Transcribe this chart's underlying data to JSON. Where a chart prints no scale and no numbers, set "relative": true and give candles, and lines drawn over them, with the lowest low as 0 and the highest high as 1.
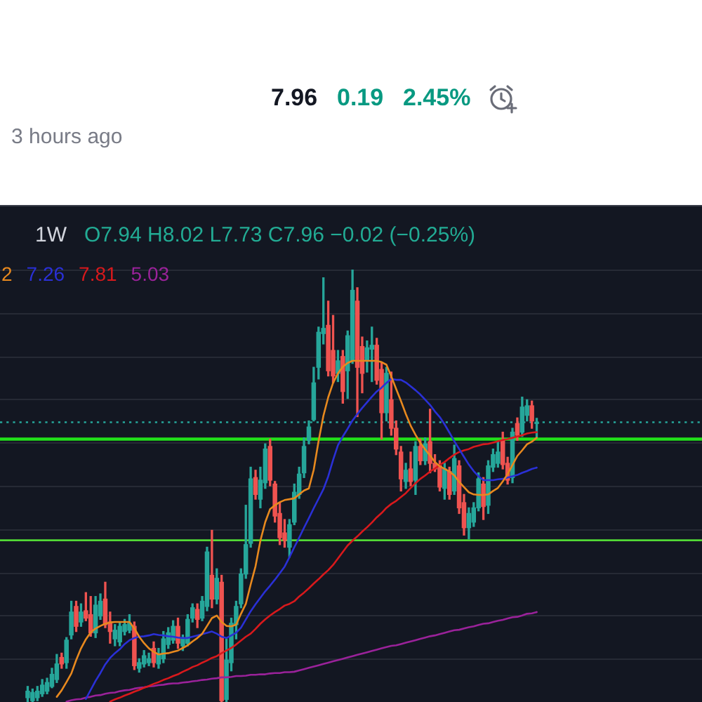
{
  "chart_data": {
    "type": "candlestick",
    "subtitle": "1W",
    "relative": true,
    "annotations": [
      "7.96",
      "0.19",
      "2.45%",
      "3 hours ago",
      "O7.94 H8.02 L7.73 C7.96 −0.02 (−0.25%)"
    ],
    "categories": [
      null,
      null,
      null,
      null,
      null,
      null,
      null,
      null,
      null,
      null,
      null,
      null,
      null,
      null,
      null,
      null,
      null,
      null,
      null,
      null,
      null,
      null,
      null,
      null,
      null,
      null,
      null,
      null,
      null,
      null,
      null,
      null,
      null,
      null,
      null,
      null,
      null,
      null,
      null,
      null,
      null,
      null,
      null,
      null,
      null,
      null,
      null,
      null,
      null,
      null,
      null,
      null,
      null,
      null,
      null,
      null,
      null,
      null,
      null,
      null,
      null,
      null,
      null,
      null,
      null,
      null,
      null,
      null,
      null,
      null,
      null,
      null,
      null,
      null,
      null,
      null,
      null,
      null,
      null,
      null,
      null,
      null,
      null,
      null,
      null,
      null,
      null,
      null,
      null,
      null,
      null,
      null,
      null,
      null,
      null,
      null,
      null,
      null,
      null,
      null,
      null,
      null,
      null,
      null,
      null,
      null
    ],
    "ohlc": [
      [
        0.01,
        0.036,
        0.0,
        0.025
      ],
      [
        0.003,
        0.03,
        0.0,
        0.022
      ],
      [
        0.01,
        0.036,
        0.003,
        0.025
      ],
      [
        0.019,
        0.052,
        0.013,
        0.039
      ],
      [
        0.025,
        0.055,
        0.019,
        0.045
      ],
      [
        0.036,
        0.078,
        0.033,
        0.064
      ],
      [
        0.052,
        0.11,
        0.045,
        0.088
      ],
      [
        0.103,
        0.113,
        0.078,
        0.088
      ],
      [
        0.091,
        0.149,
        0.078,
        0.143
      ],
      [
        0.155,
        0.233,
        0.146,
        0.208
      ],
      [
        0.221,
        0.233,
        0.163,
        0.175
      ],
      [
        0.185,
        0.227,
        0.175,
        0.208
      ],
      [
        0.211,
        0.253,
        0.188,
        0.194
      ],
      [
        0.202,
        0.244,
        0.152,
        0.16
      ],
      [
        0.16,
        0.244,
        0.149,
        0.224
      ],
      [
        0.199,
        0.25,
        0.191,
        0.233
      ],
      [
        0.238,
        0.277,
        0.172,
        0.179
      ],
      [
        0.185,
        0.208,
        0.136,
        0.163
      ],
      [
        0.146,
        0.179,
        0.13,
        0.166
      ],
      [
        0.139,
        0.185,
        0.13,
        0.175
      ],
      [
        0.163,
        0.191,
        0.155,
        0.179
      ],
      [
        0.166,
        0.202,
        0.16,
        0.182
      ],
      [
        0.175,
        0.185,
        0.075,
        0.084
      ],
      [
        0.078,
        0.1,
        0.069,
        0.091
      ],
      [
        0.088,
        0.119,
        0.081,
        0.107
      ],
      [
        0.091,
        0.113,
        0.084,
        0.1
      ],
      [
        0.124,
        0.139,
        0.081,
        0.091
      ],
      [
        0.088,
        0.124,
        0.078,
        0.11
      ],
      [
        0.1,
        0.163,
        0.091,
        0.146
      ],
      [
        0.133,
        0.172,
        0.124,
        0.16
      ],
      [
        0.143,
        0.188,
        0.136,
        0.175
      ],
      [
        0.175,
        0.194,
        0.124,
        0.136
      ],
      [
        0.13,
        0.155,
        0.119,
        0.146
      ],
      [
        0.136,
        0.202,
        0.13,
        0.191
      ],
      [
        0.194,
        0.227,
        0.185,
        0.218
      ],
      [
        0.214,
        0.227,
        0.172,
        0.191
      ],
      [
        0.194,
        0.244,
        0.188,
        0.233
      ],
      [
        0.221,
        0.358,
        0.211,
        0.347
      ],
      [
        0.293,
        0.397,
        0.218,
        0.238
      ],
      [
        0.238,
        0.308,
        0.227,
        0.286
      ],
      [
        0.277,
        0.293,
        0.0,
        0.003
      ],
      [
        0.006,
        0.146,
        0.0,
        0.097
      ],
      [
        0.091,
        0.194,
        0.072,
        0.182
      ],
      [
        0.179,
        0.233,
        0.146,
        0.221
      ],
      [
        0.227,
        0.308,
        0.218,
        0.296
      ],
      [
        0.296,
        0.455,
        0.286,
        0.364
      ],
      [
        0.367,
        0.543,
        0.358,
        0.516
      ],
      [
        0.519,
        0.536,
        0.469,
        0.48
      ],
      [
        0.469,
        0.543,
        0.449,
        0.513
      ],
      [
        0.507,
        0.597,
        0.494,
        0.585
      ],
      [
        0.591,
        0.608,
        0.5,
        0.513
      ],
      [
        0.504,
        0.51,
        0.416,
        0.43
      ],
      [
        0.436,
        0.461,
        0.364,
        0.38
      ],
      [
        0.391,
        0.422,
        0.358,
        0.374
      ],
      [
        0.358,
        0.422,
        0.335,
        0.41
      ],
      [
        0.416,
        0.504,
        0.41,
        0.485
      ],
      [
        0.48,
        0.543,
        0.471,
        0.527
      ],
      [
        0.53,
        0.611,
        0.519,
        0.591
      ],
      [
        0.605,
        0.65,
        0.597,
        0.636
      ],
      [
        0.653,
        0.774,
        0.65,
        0.738
      ],
      [
        0.774,
        0.867,
        0.747,
        0.855
      ],
      [
        0.852,
        0.981,
        0.828,
        0.864
      ],
      [
        0.871,
        0.927,
        0.754,
        0.766
      ],
      [
        0.813,
        0.894,
        0.738,
        0.754
      ],
      [
        0.76,
        0.813,
        0.741,
        0.789
      ],
      [
        0.799,
        0.813,
        0.691,
        0.718
      ],
      [
        0.766,
        0.858,
        0.702,
        0.847
      ],
      [
        0.789,
        1.0,
        0.783,
        0.952
      ],
      [
        0.927,
        0.958,
        0.66,
        0.774
      ],
      [
        0.822,
        0.844,
        0.715,
        0.76
      ],
      [
        0.789,
        0.835,
        0.763,
        0.819
      ],
      [
        0.816,
        0.867,
        0.741,
        0.825
      ],
      [
        0.825,
        0.841,
        0.735,
        0.744
      ],
      [
        0.769,
        0.786,
        0.608,
        0.669
      ],
      [
        0.669,
        0.774,
        0.65,
        0.76
      ],
      [
        0.699,
        0.763,
        0.617,
        0.633
      ],
      [
        0.633,
        0.65,
        0.572,
        0.585
      ],
      [
        0.578,
        0.591,
        0.488,
        0.516
      ],
      [
        0.51,
        0.552,
        0.494,
        0.536
      ],
      [
        0.539,
        0.578,
        0.5,
        0.51
      ],
      [
        0.513,
        0.602,
        0.48,
        0.591
      ],
      [
        0.591,
        0.608,
        0.549,
        0.558
      ],
      [
        0.558,
        0.611,
        0.549,
        0.597
      ],
      [
        0.602,
        0.677,
        0.53,
        0.552
      ],
      [
        0.552,
        0.572,
        0.533,
        0.539
      ],
      [
        0.546,
        0.558,
        0.488,
        0.497
      ],
      [
        0.494,
        0.552,
        0.469,
        0.539
      ],
      [
        0.533,
        0.543,
        0.469,
        0.48
      ],
      [
        0.488,
        0.594,
        0.48,
        0.563
      ],
      [
        0.546,
        0.558,
        0.436,
        0.449
      ],
      [
        0.461,
        0.48,
        0.386,
        0.403
      ],
      [
        0.403,
        0.449,
        0.377,
        0.436
      ],
      [
        0.416,
        0.461,
        0.406,
        0.449
      ],
      [
        0.449,
        0.53,
        0.442,
        0.516
      ],
      [
        0.504,
        0.519,
        0.422,
        0.452
      ],
      [
        0.455,
        0.558,
        0.436,
        0.546
      ],
      [
        0.543,
        0.585,
        0.533,
        0.572
      ],
      [
        0.552,
        0.602,
        0.543,
        0.578
      ],
      [
        0.605,
        0.624,
        0.539,
        0.549
      ],
      [
        0.552,
        0.566,
        0.504,
        0.513
      ],
      [
        0.519,
        0.633,
        0.507,
        0.624
      ],
      [
        0.644,
        0.657,
        0.605,
        0.617
      ],
      [
        0.624,
        0.705,
        0.614,
        0.682
      ],
      [
        0.663,
        0.699,
        0.65,
        0.685
      ],
      [
        0.685,
        0.696,
        0.633,
        0.65
      ],
      [
        0.644,
        0.656,
        0.612,
        0.647
      ]
    ],
    "colors": [
      "#26a69a",
      "#26a69a",
      "#26a69a",
      "#26a69a",
      "#26a69a",
      "#26a69a",
      "#26a69a",
      "#ef5350",
      "#26a69a",
      "#26a69a",
      "#ef5350",
      "#26a69a",
      "#ef5350",
      "#ef5350",
      "#26a69a",
      "#26a69a",
      "#ef5350",
      "#ef5350",
      "#26a69a",
      "#26a69a",
      "#26a69a",
      "#26a69a",
      "#ef5350",
      "#26a69a",
      "#26a69a",
      "#26a69a",
      "#ef5350",
      "#26a69a",
      "#26a69a",
      "#26a69a",
      "#26a69a",
      "#ef5350",
      "#26a69a",
      "#26a69a",
      "#26a69a",
      "#ef5350",
      "#26a69a",
      "#26a69a",
      "#ef5350",
      "#26a69a",
      "#ef5350",
      "#26a69a",
      "#26a69a",
      "#26a69a",
      "#26a69a",
      "#26a69a",
      "#26a69a",
      "#ef5350",
      "#26a69a",
      "#26a69a",
      "#ef5350",
      "#ef5350",
      "#ef5350",
      "#ef5350",
      "#26a69a",
      "#26a69a",
      "#26a69a",
      "#26a69a",
      "#26a69a",
      "#26a69a",
      "#26a69a",
      "#26a69a",
      "#ef5350",
      "#ef5350",
      "#26a69a",
      "#ef5350",
      "#26a69a",
      "#26a69a",
      "#ef5350",
      "#ef5350",
      "#26a69a",
      "#26a69a",
      "#ef5350",
      "#ef5350",
      "#26a69a",
      "#ef5350",
      "#ef5350",
      "#ef5350",
      "#26a69a",
      "#ef5350",
      "#26a69a",
      "#ef5350",
      "#26a69a",
      "#ef5350",
      "#ef5350",
      "#ef5350",
      "#26a69a",
      "#ef5350",
      "#26a69a",
      "#ef5350",
      "#ef5350",
      "#26a69a",
      "#26a69a",
      "#26a69a",
      "#ef5350",
      "#26a69a",
      "#26a69a",
      "#26a69a",
      "#ef5350",
      "#ef5350",
      "#26a69a",
      "#ef5350",
      "#26a69a",
      "#26a69a",
      "#ef5350",
      "#26a69a"
    ],
    "series": [
      {
        "type": "line",
        "name": "2",
        "color": "#e8891e",
        "values": [
          null,
          null,
          null,
          null,
          null,
          null,
          0.012,
          0.027,
          0.046,
          0.066,
          0.097,
          0.124,
          0.145,
          0.161,
          0.17,
          0.176,
          0.181,
          0.184,
          0.185,
          0.185,
          0.185,
          0.185,
          0.17,
          0.151,
          0.136,
          0.124,
          0.116,
          0.11,
          0.112,
          0.113,
          0.116,
          0.119,
          0.125,
          0.131,
          0.14,
          0.148,
          0.158,
          0.176,
          0.194,
          0.2,
          0.185,
          0.176,
          0.175,
          0.179,
          0.204,
          0.227,
          0.272,
          0.314,
          0.373,
          0.416,
          0.446,
          0.455,
          0.462,
          0.467,
          0.469,
          0.471,
          0.48,
          0.489,
          0.494,
          0.537,
          0.603,
          0.662,
          0.705,
          0.738,
          0.76,
          0.775,
          0.784,
          0.789,
          0.789,
          0.789,
          0.789,
          0.789,
          0.789,
          0.786,
          0.78,
          0.753,
          0.724,
          0.696,
          0.666,
          0.639,
          0.618,
          0.599,
          0.584,
          0.57,
          0.555,
          0.545,
          0.539,
          0.533,
          0.524,
          0.509,
          0.497,
          0.485,
          0.48,
          0.479,
          0.479,
          0.48,
          0.488,
          0.495,
          0.51,
          0.527,
          0.548,
          0.569,
          0.582,
          0.596,
          0.602,
          0.611
        ]
      },
      {
        "type": "line",
        "name": "7.26",
        "color": "#2a30d6",
        "values": [
          null,
          null,
          null,
          null,
          null,
          null,
          null,
          null,
          null,
          null,
          null,
          null,
          0.007,
          0.028,
          0.049,
          0.067,
          0.087,
          0.102,
          0.113,
          0.122,
          0.134,
          0.143,
          0.148,
          0.151,
          0.152,
          0.154,
          0.157,
          0.155,
          0.154,
          0.152,
          0.151,
          0.149,
          0.148,
          0.148,
          0.151,
          0.154,
          0.157,
          0.16,
          0.163,
          0.158,
          0.151,
          0.148,
          0.154,
          0.16,
          0.172,
          0.191,
          0.21,
          0.226,
          0.241,
          0.256,
          0.269,
          0.283,
          0.298,
          0.313,
          0.335,
          0.358,
          0.38,
          0.403,
          0.425,
          0.448,
          0.47,
          0.492,
          0.522,
          0.56,
          0.594,
          0.614,
          0.632,
          0.651,
          0.666,
          0.68,
          0.693,
          0.706,
          0.718,
          0.727,
          0.738,
          0.747,
          0.745,
          0.745,
          0.739,
          0.73,
          0.721,
          0.711,
          0.699,
          0.687,
          0.672,
          0.659,
          0.642,
          0.623,
          0.603,
          0.585,
          0.567,
          0.549,
          0.534,
          0.522,
          0.513,
          0.513,
          0.513,
          0.515,
          0.516,
          0.519,
          0.522,
          0.525,
          0.53,
          0.534,
          0.539,
          0.542
        ]
      },
      {
        "type": "line",
        "name": "7.81",
        "color": "#d8191c",
        "values": [
          null,
          null,
          null,
          null,
          null,
          null,
          null,
          null,
          null,
          null,
          null,
          null,
          null,
          null,
          null,
          null,
          null,
          0.001,
          0.006,
          0.01,
          0.015,
          0.019,
          0.024,
          0.028,
          0.033,
          0.037,
          0.042,
          0.046,
          0.051,
          0.055,
          0.06,
          0.064,
          0.07,
          0.075,
          0.081,
          0.085,
          0.091,
          0.096,
          0.102,
          0.106,
          0.113,
          0.119,
          0.125,
          0.133,
          0.142,
          0.151,
          0.158,
          0.169,
          0.181,
          0.191,
          0.2,
          0.208,
          0.215,
          0.223,
          0.227,
          0.233,
          0.244,
          0.253,
          0.263,
          0.274,
          0.284,
          0.295,
          0.305,
          0.317,
          0.332,
          0.347,
          0.362,
          0.373,
          0.383,
          0.394,
          0.404,
          0.415,
          0.427,
          0.437,
          0.449,
          0.458,
          0.465,
          0.474,
          0.483,
          0.495,
          0.506,
          0.516,
          0.524,
          0.533,
          0.54,
          0.548,
          0.555,
          0.564,
          0.572,
          0.578,
          0.582,
          0.585,
          0.59,
          0.593,
          0.596,
          0.597,
          0.6,
          0.603,
          0.606,
          0.608,
          0.611,
          0.614,
          0.617,
          0.621,
          0.623,
          0.624
        ]
      },
      {
        "type": "line",
        "name": "5.03",
        "color": "#9a229a",
        "values": [
          null,
          null,
          null,
          null,
          null,
          null,
          null,
          null,
          0.001,
          0.004,
          0.006,
          0.007,
          0.01,
          0.012,
          0.015,
          0.016,
          0.019,
          0.021,
          0.022,
          0.025,
          0.027,
          0.028,
          0.031,
          0.033,
          0.034,
          0.036,
          0.037,
          0.039,
          0.04,
          0.042,
          0.043,
          0.043,
          0.045,
          0.046,
          0.048,
          0.049,
          0.051,
          0.052,
          0.054,
          0.055,
          0.057,
          0.057,
          0.058,
          0.06,
          0.06,
          0.061,
          0.063,
          0.063,
          0.064,
          0.064,
          0.066,
          0.067,
          0.067,
          0.069,
          0.069,
          0.07,
          0.073,
          0.076,
          0.079,
          0.082,
          0.085,
          0.088,
          0.091,
          0.094,
          0.097,
          0.1,
          0.103,
          0.106,
          0.109,
          0.112,
          0.115,
          0.118,
          0.121,
          0.124,
          0.127,
          0.13,
          0.131,
          0.134,
          0.137,
          0.14,
          0.143,
          0.146,
          0.149,
          0.152,
          0.154,
          0.157,
          0.16,
          0.163,
          0.166,
          0.167,
          0.17,
          0.173,
          0.175,
          0.178,
          0.181,
          0.182,
          0.185,
          0.188,
          0.19,
          0.193,
          0.196,
          0.197,
          0.2,
          0.204,
          0.205,
          0.208
        ]
      }
    ],
    "ref_lines": [
      {
        "axis": "y",
        "value": 0.647,
        "color": "#26a69a",
        "line_style": "dotted"
      },
      {
        "axis": "y",
        "value": 0.608,
        "color": "#22e01a"
      },
      {
        "axis": "y",
        "value": 0.374,
        "color": "#52d936"
      }
    ],
    "grid": "y",
    "legend": "top left",
    "tick_labels": false,
    "marker": "none"
  }
}
